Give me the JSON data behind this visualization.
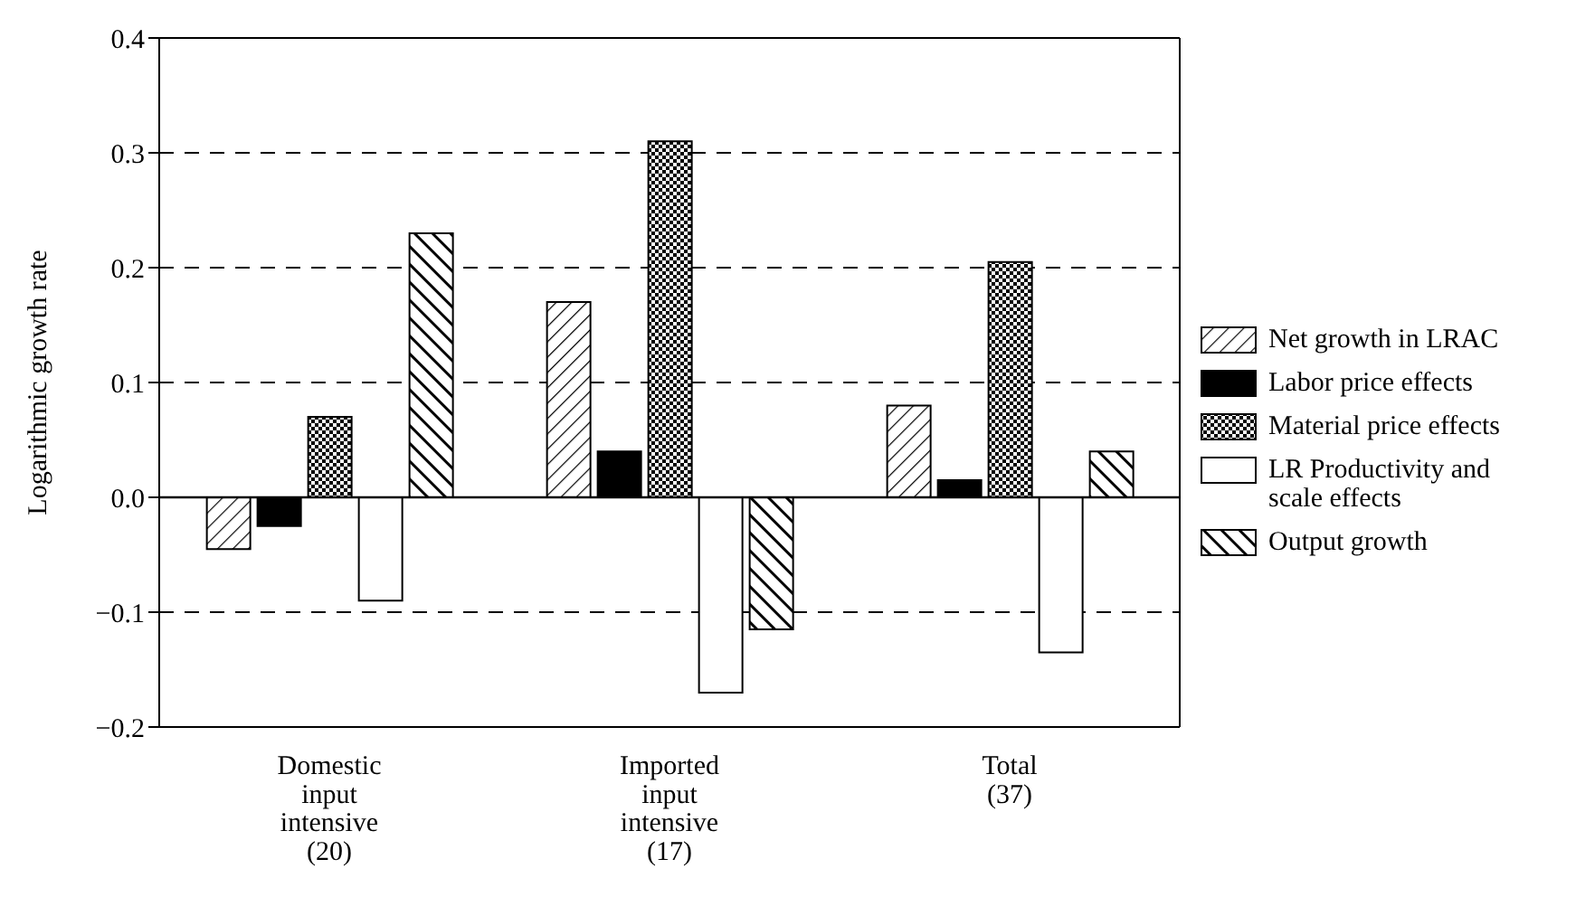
{
  "chart_data": {
    "type": "bar",
    "ylabel": "Logarithmic growth rate",
    "categories": [
      "Domestic\ninput\nintensive\n(20)",
      "Imported\ninput\nintensive\n(17)",
      "Total\n(37)"
    ],
    "series": [
      {
        "name": "Net growth in LRAC",
        "color": "#000000",
        "values": [
          -0.045,
          0.17,
          0.08
        ]
      },
      {
        "name": "Labor price effects",
        "color": "#000000",
        "values": [
          -0.025,
          0.04,
          0.015
        ]
      },
      {
        "name": "Material price effects",
        "color": "#000000",
        "values": [
          0.07,
          0.31,
          0.205
        ]
      },
      {
        "name": "LR Productivity and\nscale effects",
        "color": "#ffffff",
        "values": [
          -0.09,
          -0.17,
          -0.135
        ]
      },
      {
        "name": "Output growth",
        "color": "#000000",
        "values": [
          0.23,
          -0.115,
          0.04
        ]
      }
    ],
    "ylim": [
      -0.2,
      0.4
    ],
    "yticks": [
      {
        "value": -0.2,
        "label": "−0.2"
      },
      {
        "value": -0.1,
        "label": "−0.1"
      },
      {
        "value": 0,
        "label": "0.0"
      },
      0.1,
      0.2,
      0.3,
      0.4
    ],
    "ref_lines": [
      {
        "axis": "y",
        "value": 0,
        "line_style": "solid"
      }
    ],
    "grid": "y",
    "legend": "right"
  }
}
